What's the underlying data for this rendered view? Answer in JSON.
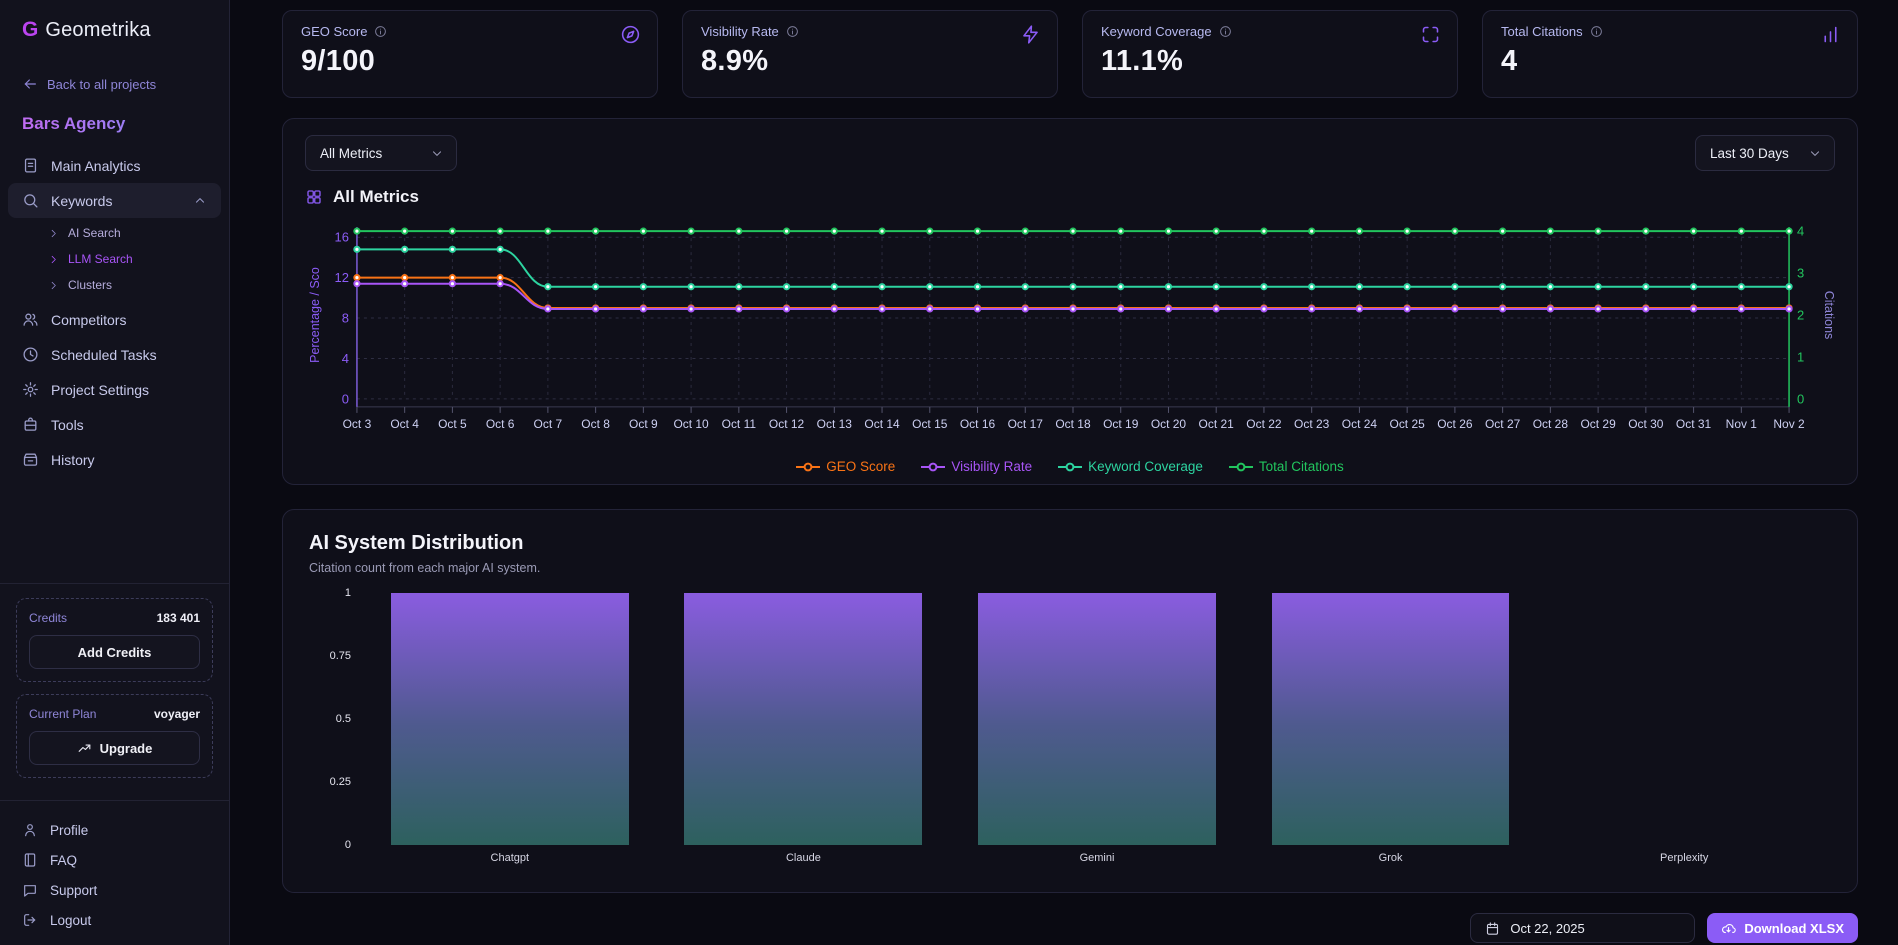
{
  "brand": {
    "logo_letter": "G",
    "name": "Geometrika"
  },
  "sidebar": {
    "back_label": "Back to all projects",
    "project_name": "Bars Agency",
    "items": {
      "main_analytics": "Main Analytics",
      "keywords": "Keywords",
      "ai_search": "AI Search",
      "llm_search": "LLM Search",
      "clusters": "Clusters",
      "competitors": "Competitors",
      "scheduled_tasks": "Scheduled Tasks",
      "project_settings": "Project Settings",
      "tools": "Tools",
      "history": "History",
      "profile": "Profile",
      "faq": "FAQ",
      "support": "Support",
      "logout": "Logout"
    },
    "credits": {
      "label": "Credits",
      "value": "183 401",
      "button": "Add Credits"
    },
    "plan": {
      "label": "Current Plan",
      "value": "voyager",
      "button": "Upgrade"
    }
  },
  "metrics": [
    {
      "label": "GEO Score",
      "value": "9/100",
      "icon": "compass"
    },
    {
      "label": "Visibility Rate",
      "value": "8.9%",
      "icon": "zap"
    },
    {
      "label": "Keyword Coverage",
      "value": "11.1%",
      "icon": "scan"
    },
    {
      "label": "Total Citations",
      "value": "4",
      "icon": "bars"
    }
  ],
  "metrics_panel": {
    "filter_dropdown": "All Metrics",
    "range_dropdown": "Last 30 Days",
    "title": "All Metrics"
  },
  "bar_panel": {
    "title": "AI System Distribution",
    "subtitle": "Citation count from each major AI system."
  },
  "footer": {
    "date": "Oct 22, 2025",
    "download_label": "Download XLSX"
  },
  "colors": {
    "accent": "#8b5cf6",
    "geo_score": "#f97316",
    "visibility_rate": "#a855f7",
    "keyword_coverage": "#2dd4a0",
    "total_citations": "#22c55e"
  },
  "chart_data": [
    {
      "type": "line",
      "title": "All Metrics",
      "x": [
        "Oct 3",
        "Oct 4",
        "Oct 5",
        "Oct 6",
        "Oct 7",
        "Oct 8",
        "Oct 9",
        "Oct 10",
        "Oct 11",
        "Oct 12",
        "Oct 13",
        "Oct 14",
        "Oct 15",
        "Oct 16",
        "Oct 17",
        "Oct 18",
        "Oct 19",
        "Oct 20",
        "Oct 21",
        "Oct 22",
        "Oct 23",
        "Oct 24",
        "Oct 25",
        "Oct 26",
        "Oct 27",
        "Oct 28",
        "Oct 29",
        "Oct 30",
        "Oct 31",
        "Nov 1",
        "Nov 2"
      ],
      "ylabel_left": "Percentage / Sco",
      "ylabel_right": "Citations",
      "ylim_left": [
        0,
        16.6
      ],
      "yticks_left": [
        0,
        4,
        8,
        12,
        16
      ],
      "ylim_right": [
        0,
        4
      ],
      "yticks_right": [
        0,
        1,
        2,
        3,
        4
      ],
      "grid": true,
      "legend_position": "bottom",
      "series": [
        {
          "name": "GEO Score",
          "color": "#f97316",
          "axis": "left",
          "values": [
            12,
            12,
            12,
            12,
            9,
            9,
            9,
            9,
            9,
            9,
            9,
            9,
            9,
            9,
            9,
            9,
            9,
            9,
            9,
            9,
            9,
            9,
            9,
            9,
            9,
            9,
            9,
            9,
            9,
            9,
            9
          ]
        },
        {
          "name": "Visibility Rate",
          "color": "#a855f7",
          "axis": "left",
          "values": [
            11.4,
            11.4,
            11.4,
            11.4,
            8.9,
            8.9,
            8.9,
            8.9,
            8.9,
            8.9,
            8.9,
            8.9,
            8.9,
            8.9,
            8.9,
            8.9,
            8.9,
            8.9,
            8.9,
            8.9,
            8.9,
            8.9,
            8.9,
            8.9,
            8.9,
            8.9,
            8.9,
            8.9,
            8.9,
            8.9,
            8.9
          ]
        },
        {
          "name": "Keyword Coverage",
          "color": "#2dd4a0",
          "axis": "left",
          "values": [
            14.8,
            14.8,
            14.8,
            14.8,
            11.1,
            11.1,
            11.1,
            11.1,
            11.1,
            11.1,
            11.1,
            11.1,
            11.1,
            11.1,
            11.1,
            11.1,
            11.1,
            11.1,
            11.1,
            11.1,
            11.1,
            11.1,
            11.1,
            11.1,
            11.1,
            11.1,
            11.1,
            11.1,
            11.1,
            11.1,
            11.1
          ]
        },
        {
          "name": "Total Citations",
          "color": "#22c55e",
          "axis": "right",
          "values": [
            4,
            4,
            4,
            4,
            4,
            4,
            4,
            4,
            4,
            4,
            4,
            4,
            4,
            4,
            4,
            4,
            4,
            4,
            4,
            4,
            4,
            4,
            4,
            4,
            4,
            4,
            4,
            4,
            4,
            4,
            4
          ]
        }
      ]
    },
    {
      "type": "bar",
      "title": "AI System Distribution",
      "categories": [
        "Chatgpt",
        "Claude",
        "Gemini",
        "Grok",
        "Perplexity"
      ],
      "values": [
        1,
        1,
        1,
        1,
        0
      ],
      "ylim": [
        0,
        1
      ],
      "yticks": [
        0,
        0.25,
        0.5,
        0.75,
        1
      ],
      "ylabel": "",
      "xlabel": "",
      "bar_gradient": [
        "#8a5ce0",
        "#2d615e"
      ]
    }
  ]
}
